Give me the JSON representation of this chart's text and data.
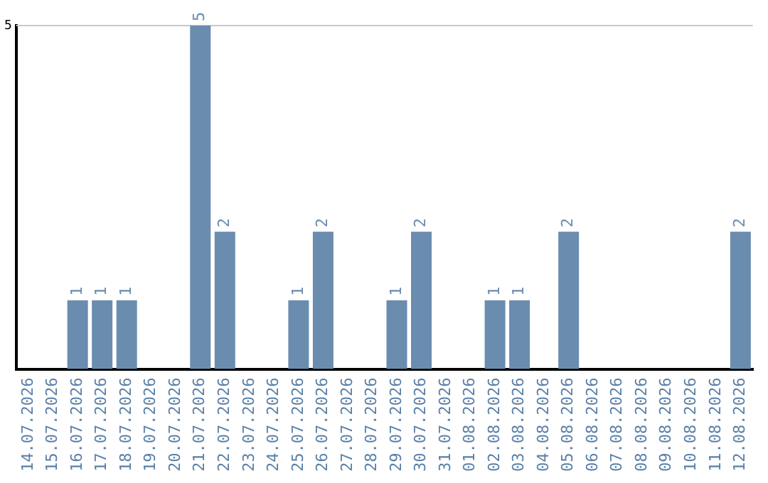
{
  "chart_data": {
    "type": "bar",
    "categories": [
      "14.07.2026",
      "15.07.2026",
      "16.07.2026",
      "17.07.2026",
      "18.07.2026",
      "19.07.2026",
      "20.07.2026",
      "21.07.2026",
      "22.07.2026",
      "23.07.2026",
      "24.07.2026",
      "25.07.2026",
      "26.07.2026",
      "27.07.2026",
      "28.07.2026",
      "29.07.2026",
      "30.07.2026",
      "31.07.2026",
      "01.08.2026",
      "02.08.2026",
      "03.08.2026",
      "04.08.2026",
      "05.08.2026",
      "06.08.2026",
      "07.08.2026",
      "08.08.2026",
      "09.08.2026",
      "10.08.2026",
      "11.08.2026",
      "12.08.2026"
    ],
    "values": [
      0,
      0,
      1,
      1,
      1,
      0,
      0,
      5,
      2,
      0,
      0,
      1,
      2,
      0,
      0,
      1,
      2,
      0,
      0,
      1,
      1,
      0,
      2,
      0,
      0,
      0,
      0,
      0,
      0,
      2
    ],
    "value_labels": [
      null,
      null,
      "1",
      "1",
      "1",
      null,
      null,
      "5",
      "2",
      null,
      null,
      "1",
      "2",
      null,
      null,
      "1",
      "2",
      null,
      null,
      "1",
      "1",
      null,
      "2",
      null,
      null,
      null,
      null,
      null,
      null,
      "2"
    ],
    "color": "#6a8caf",
    "ylim": [
      0,
      5
    ],
    "yticks": [
      5
    ],
    "ref_lines": [
      {
        "axis": "y",
        "value": 5,
        "color": "#c8c8c8"
      }
    ],
    "legend": false
  }
}
